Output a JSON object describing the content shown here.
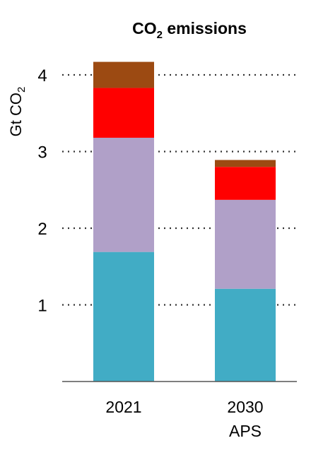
{
  "chart_data": {
    "type": "bar",
    "stacked": true,
    "title": {
      "main": "CO",
      "sub": "2",
      "rest": " emissions"
    },
    "ylabel": {
      "main": "Gt CO",
      "sub": "2"
    },
    "ylim": [
      0,
      4.2
    ],
    "yticks": [
      1,
      2,
      3,
      4
    ],
    "grid": "horizontal-dotted",
    "categories": [
      {
        "lines": [
          "2021"
        ]
      },
      {
        "lines": [
          "2030",
          "APS"
        ]
      }
    ],
    "series": [
      {
        "color": "#41acc5",
        "values": [
          1.69,
          1.21
        ]
      },
      {
        "color": "#b0a0c8",
        "values": [
          1.49,
          1.16
        ]
      },
      {
        "color": "#ff0000",
        "values": [
          0.65,
          0.43
        ]
      },
      {
        "color": "#9c4a12",
        "values": [
          0.34,
          0.09
        ]
      }
    ]
  }
}
